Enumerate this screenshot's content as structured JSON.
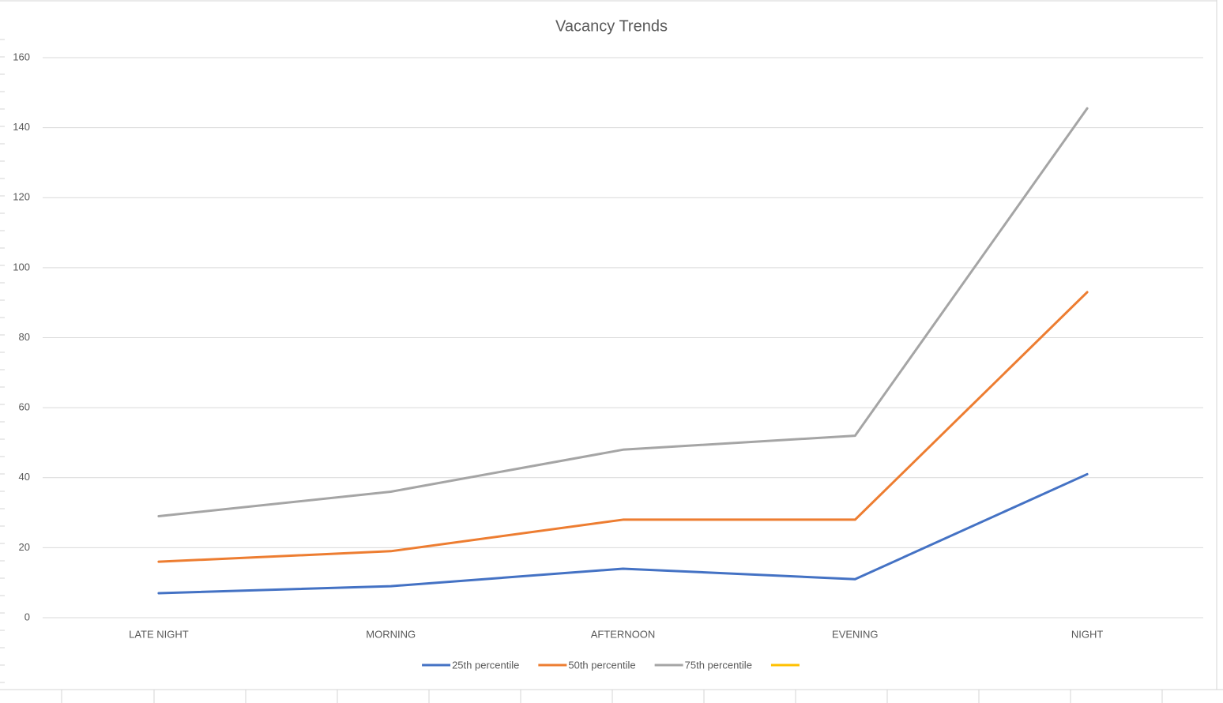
{
  "chart_data": {
    "type": "line",
    "title": "Vacancy Trends",
    "categories": [
      "LATE NIGHT",
      "MORNING",
      "AFTERNOON",
      "EVENING",
      "NIGHT"
    ],
    "series": [
      {
        "name": "25th percentile",
        "color": "#4472c4",
        "values": [
          7,
          9,
          14,
          11,
          41
        ]
      },
      {
        "name": "50th percentile",
        "color": "#ed7d31",
        "values": [
          16,
          19,
          28,
          28,
          93
        ]
      },
      {
        "name": "75th percentile",
        "color": "#a5a5a5",
        "values": [
          29,
          36,
          48,
          52,
          145.5
        ]
      },
      {
        "color": "#ffc000",
        "values": [
          null,
          null,
          null,
          null,
          null
        ]
      }
    ],
    "ylim": [
      0,
      160
    ],
    "yticks": [
      0,
      20,
      40,
      60,
      80,
      100,
      120,
      140,
      160
    ],
    "grid": true,
    "legend": "bottom"
  }
}
